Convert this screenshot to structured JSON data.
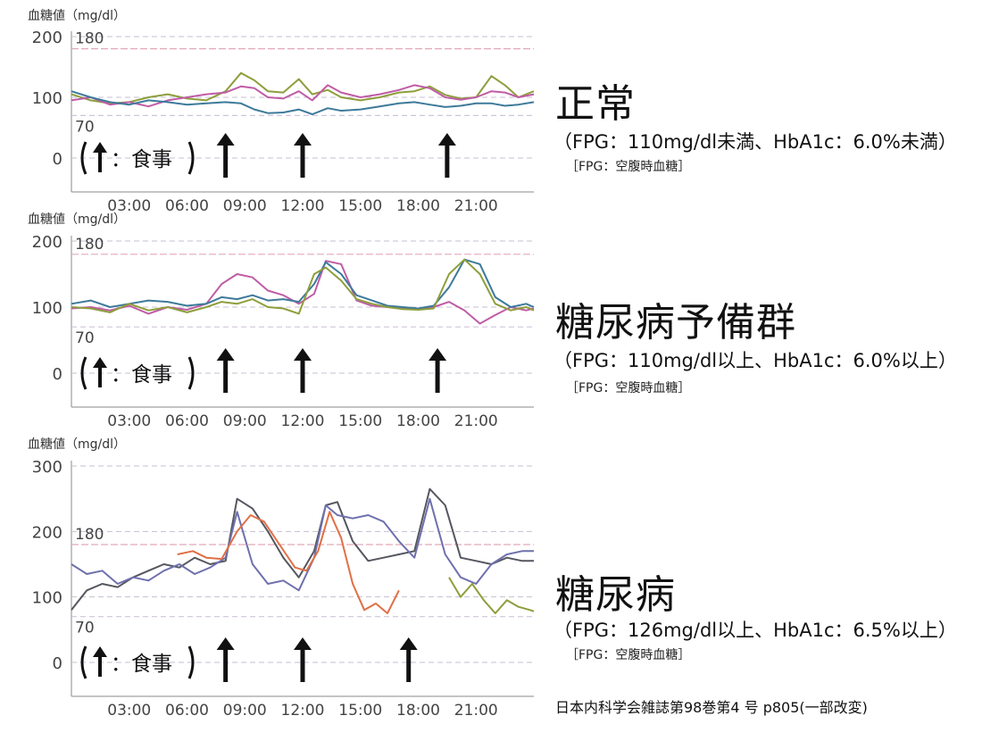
{
  "charts_common": {
    "ylabel": "血糖値（mg/dl）",
    "x_ticks": [
      "03:00",
      "06:00",
      "09:00",
      "12:00",
      "15:00",
      "18:00",
      "21:00"
    ],
    "legend_text": "：食事",
    "colors": {
      "grid": "#c7bfd0",
      "line_180": "#e2a9b8",
      "line_70": "#cfc5dc",
      "axis": "#8a8a8a",
      "tick_text": "#444444",
      "arrow": "#111111"
    }
  },
  "chart_data": [
    {
      "type": "line",
      "name": "正常",
      "y_ticks": [
        0,
        100,
        200
      ],
      "ylim": [
        0,
        200
      ],
      "ref_lines": [
        180,
        70
      ],
      "meal_times_hours": [
        8,
        12,
        19.5
      ],
      "xlim_hours": [
        0,
        24
      ],
      "series": [
        {
          "color": "#8e9e3c",
          "x": [
            0,
            1,
            2,
            3,
            4,
            5,
            6,
            7,
            8,
            8.8,
            9.5,
            10.2,
            11,
            11.8,
            12.5,
            13.3,
            14,
            15,
            16,
            17,
            17.8,
            18.6,
            19.4,
            20.2,
            21,
            21.8,
            22.5,
            23.2,
            24
          ],
          "y": [
            105,
            95,
            90,
            92,
            100,
            105,
            98,
            95,
            110,
            140,
            128,
            110,
            108,
            130,
            105,
            112,
            100,
            95,
            100,
            108,
            110,
            118,
            104,
            98,
            100,
            135,
            120,
            100,
            110
          ]
        },
        {
          "color": "#c05ca6",
          "x": [
            0,
            1,
            2,
            3,
            4,
            5,
            6,
            7,
            8,
            8.8,
            9.5,
            10.2,
            11,
            11.8,
            12.5,
            13.3,
            14,
            15,
            16,
            17,
            17.8,
            18.6,
            19.4,
            20.2,
            21,
            21.8,
            22.5,
            23.2,
            24
          ],
          "y": [
            95,
            100,
            88,
            92,
            85,
            95,
            100,
            105,
            108,
            118,
            115,
            100,
            98,
            110,
            95,
            120,
            108,
            100,
            105,
            112,
            120,
            115,
            100,
            96,
            100,
            110,
            108,
            100,
            105
          ]
        },
        {
          "color": "#3d7a9a",
          "x": [
            0,
            1,
            2,
            3,
            4,
            5,
            6,
            7,
            8,
            8.8,
            9.5,
            10.2,
            11,
            11.8,
            12.5,
            13.3,
            14,
            15,
            16,
            17,
            17.8,
            18.6,
            19.4,
            20.2,
            21,
            21.8,
            22.5,
            23.2,
            24
          ],
          "y": [
            110,
            100,
            92,
            88,
            95,
            92,
            88,
            90,
            92,
            90,
            80,
            74,
            75,
            80,
            72,
            82,
            78,
            80,
            85,
            90,
            92,
            88,
            84,
            86,
            90,
            90,
            86,
            88,
            92
          ]
        }
      ]
    },
    {
      "type": "line",
      "name": "糖尿病予備群",
      "y_ticks": [
        0,
        100,
        200
      ],
      "ylim": [
        0,
        200
      ],
      "ref_lines": [
        180,
        70
      ],
      "meal_times_hours": [
        8,
        12,
        19
      ],
      "xlim_hours": [
        0,
        24
      ],
      "series": [
        {
          "color": "#c05ca6",
          "x": [
            0,
            1,
            2,
            3,
            4,
            5,
            6,
            7,
            7.8,
            8.6,
            9.4,
            10.2,
            11,
            11.8,
            12.6,
            13.2,
            14,
            14.8,
            15.6,
            16.4,
            17.2,
            18,
            18.8,
            19.6,
            20.4,
            21.2,
            22,
            22.8,
            23.6,
            24
          ],
          "y": [
            98,
            100,
            95,
            102,
            90,
            100,
            96,
            105,
            135,
            150,
            145,
            125,
            118,
            105,
            120,
            170,
            165,
            110,
            102,
            100,
            98,
            97,
            100,
            108,
            95,
            75,
            88,
            100,
            95,
            98
          ]
        },
        {
          "color": "#3d7a9a",
          "x": [
            0,
            1,
            2,
            3,
            4,
            5,
            6,
            7,
            7.8,
            8.6,
            9.4,
            10.2,
            11,
            11.8,
            12.6,
            13.2,
            14,
            14.8,
            15.6,
            16.4,
            17.2,
            18,
            18.8,
            19.6,
            20.4,
            21.2,
            22,
            22.8,
            23.6,
            24
          ],
          "y": [
            105,
            110,
            100,
            105,
            110,
            108,
            102,
            105,
            115,
            112,
            118,
            110,
            112,
            108,
            135,
            168,
            150,
            118,
            110,
            102,
            100,
            98,
            102,
            130,
            172,
            165,
            115,
            100,
            105,
            100
          ]
        },
        {
          "color": "#8e9e3c",
          "x": [
            0,
            1,
            2,
            3,
            4,
            5,
            6,
            7,
            7.8,
            8.6,
            9.4,
            10.2,
            11,
            11.8,
            12.6,
            13.2,
            14,
            14.8,
            15.6,
            16.4,
            17.2,
            18,
            18.8,
            19.6,
            20.4,
            21.2,
            22,
            22.8,
            23.6,
            24
          ],
          "y": [
            100,
            98,
            92,
            105,
            95,
            100,
            92,
            100,
            108,
            105,
            112,
            100,
            98,
            90,
            150,
            160,
            140,
            112,
            105,
            100,
            97,
            96,
            98,
            150,
            172,
            150,
            105,
            95,
            100,
            95
          ]
        }
      ]
    },
    {
      "type": "line",
      "name": "糖尿病",
      "y_ticks": [
        0,
        100,
        200,
        300
      ],
      "ylim": [
        0,
        300
      ],
      "ref_lines": [
        180,
        70
      ],
      "meal_times_hours": [
        8,
        12,
        17.5
      ],
      "xlim_hours": [
        0,
        24
      ],
      "series": [
        {
          "color": "#55575f",
          "x": [
            0,
            0.8,
            1.6,
            2.4,
            3.2,
            4,
            4.8,
            5.6,
            6.4,
            7.2,
            8,
            8.6,
            9.4,
            10.2,
            11,
            11.8,
            12.6,
            13.2,
            13.8,
            14.6,
            15.4,
            16.2,
            17,
            17.8,
            18.6,
            19.4,
            20.2,
            21,
            21.8,
            22.6,
            23.4,
            24
          ],
          "y": [
            80,
            110,
            120,
            115,
            130,
            140,
            150,
            145,
            160,
            150,
            155,
            250,
            235,
            200,
            160,
            130,
            170,
            240,
            245,
            185,
            155,
            160,
            165,
            170,
            265,
            240,
            160,
            155,
            150,
            160,
            155,
            155
          ]
        },
        {
          "color": "#6f70ad",
          "x": [
            0,
            0.8,
            1.6,
            2.4,
            3.2,
            4,
            4.8,
            5.6,
            6.4,
            7.2,
            8,
            8.6,
            9.4,
            10.2,
            11,
            11.8,
            12.6,
            13.2,
            13.8,
            14.6,
            15.4,
            16.2,
            17,
            17.8,
            18.6,
            19.4,
            20.2,
            21,
            21.8,
            22.6,
            23.4,
            24
          ],
          "y": [
            150,
            135,
            140,
            120,
            130,
            125,
            140,
            150,
            135,
            145,
            160,
            230,
            150,
            120,
            125,
            110,
            160,
            240,
            225,
            220,
            225,
            215,
            185,
            160,
            250,
            165,
            130,
            120,
            150,
            165,
            170,
            170
          ]
        },
        {
          "color": "#e07045",
          "x": [
            5.5,
            6.3,
            7,
            7.8,
            8.6,
            9.3,
            10,
            10.8,
            11.6,
            12.2,
            12.8,
            13.4,
            14,
            14.6,
            15.2,
            15.8,
            16.4,
            17
          ],
          "y": [
            165,
            170,
            160,
            158,
            200,
            225,
            215,
            180,
            145,
            140,
            170,
            230,
            190,
            120,
            80,
            90,
            75,
            110
          ]
        },
        {
          "color": "#8e9e3c",
          "x": [
            19.6,
            20.2,
            20.8,
            21.4,
            22,
            22.6,
            23.2,
            23.8,
            24
          ],
          "y": [
            130,
            100,
            120,
            95,
            75,
            95,
            85,
            80,
            78
          ]
        }
      ]
    }
  ],
  "categories": [
    {
      "title": "正常",
      "criteria": "（FPG：110mg/dl未満、HbA1c：6.0%未満）",
      "note": "［FPG：空腹時血糖］"
    },
    {
      "title": "糖尿病予備群",
      "criteria": "（FPG：110mg/dl以上、HbA1c：6.0%以上）",
      "note": "［FPG：空腹時血糖］"
    },
    {
      "title": "糖尿病",
      "criteria": "（FPG：126mg/dl以上、HbA1c：6.5%以上）",
      "note": "［FPG：空腹時血糖］"
    }
  ],
  "source": "日本内科学会雑誌第98巻第4 号 p805(一部改変)"
}
